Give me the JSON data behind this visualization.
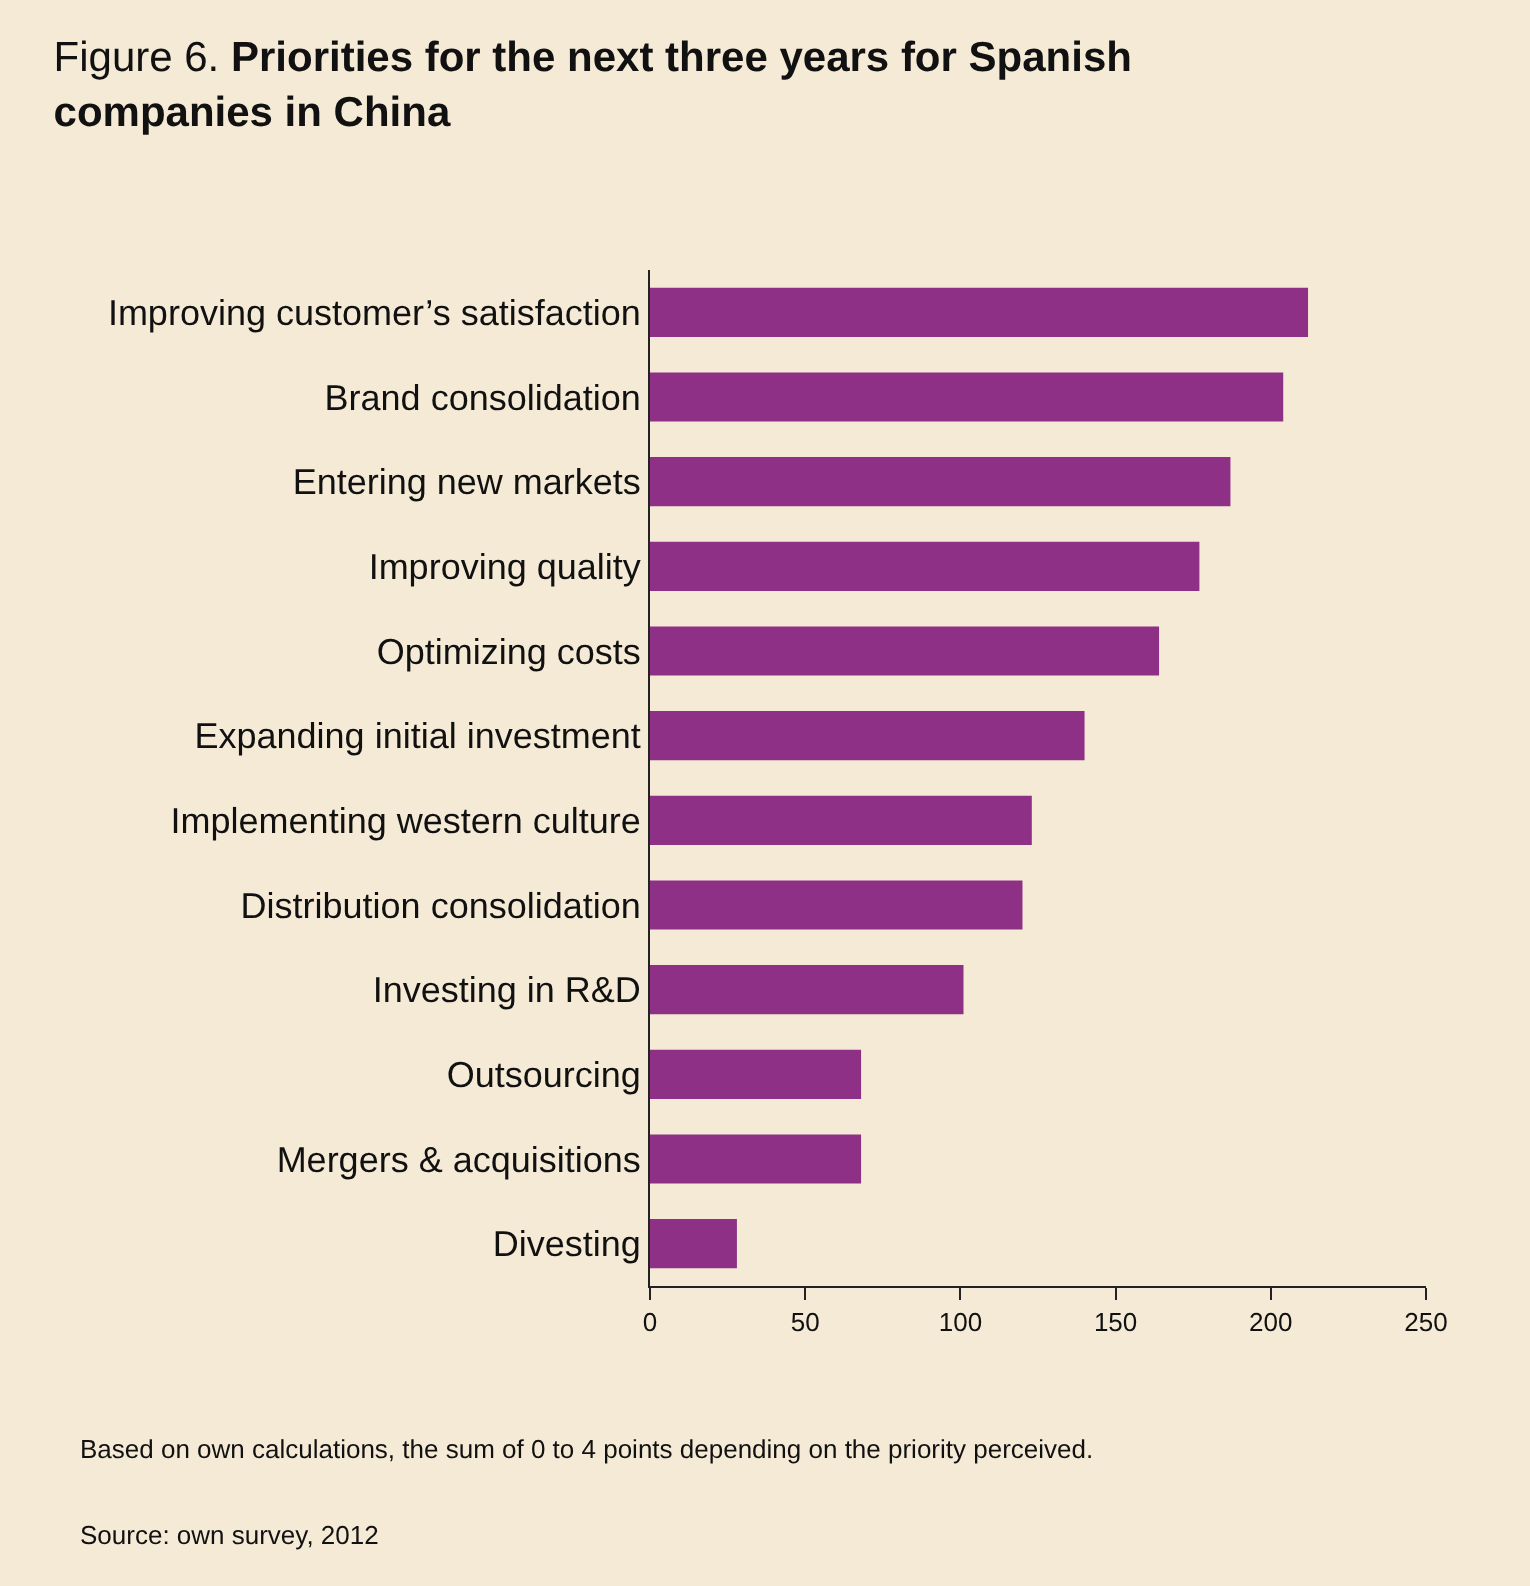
{
  "chart_data": {
    "type": "bar",
    "orientation": "horizontal",
    "title": "Figure 6. Priorities for the next three years for Spanish companies in China",
    "categories": [
      "Improving customer’s satisfaction",
      "Brand consolidation",
      "Entering new markets",
      "Improving quality",
      "Optimizing costs",
      "Expanding initial investment",
      "Implementing western culture",
      "Distribution consolidation",
      "Investing in R&D",
      "Outsourcing",
      "Mergers & acquisitions",
      "Divesting"
    ],
    "values": [
      212,
      204,
      187,
      177,
      164,
      140,
      123,
      120,
      101,
      68,
      68,
      28
    ],
    "color": "#8e3086",
    "xlim": [
      0,
      250
    ],
    "xticks": [
      0,
      50,
      100,
      150,
      200,
      250
    ],
    "grid": false,
    "annotations": [
      "Based on own calculations, the sum of 0 to 4 points depending on the priority perceived.",
      "Source: own survey, 2012"
    ]
  }
}
